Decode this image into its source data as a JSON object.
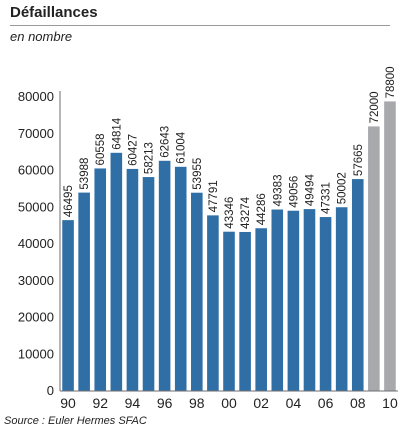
{
  "title": "Défaillances",
  "subtitle": "en nombre",
  "source": "Source : Euler Hermes SFAC",
  "colors": {
    "actual": "#2f6fa5",
    "forecast": "#a7a9ac"
  },
  "chart_data": {
    "type": "bar",
    "categories": [
      "90",
      "91",
      "92",
      "93",
      "94",
      "95",
      "96",
      "97",
      "98",
      "99",
      "00",
      "01",
      "02",
      "03",
      "04",
      "05",
      "06",
      "07",
      "08",
      "09",
      "10"
    ],
    "x_tick_labels": [
      "90",
      "",
      "92",
      "",
      "94",
      "",
      "96",
      "",
      "98",
      "",
      "00",
      "",
      "02",
      "",
      "04",
      "",
      "06",
      "",
      "08",
      "",
      "10"
    ],
    "values": [
      46495,
      53988,
      60558,
      64814,
      60427,
      58213,
      62643,
      61004,
      53955,
      47791,
      43346,
      43274,
      44286,
      49383,
      49056,
      49494,
      47331,
      50002,
      57665,
      72000,
      78800
    ],
    "forecast_from_index": 19,
    "ylim": [
      0,
      80000
    ],
    "y_ticks": [
      0,
      10000,
      20000,
      30000,
      40000,
      50000,
      60000,
      70000,
      80000
    ],
    "grid": false,
    "xlabel": "",
    "ylabel": ""
  }
}
